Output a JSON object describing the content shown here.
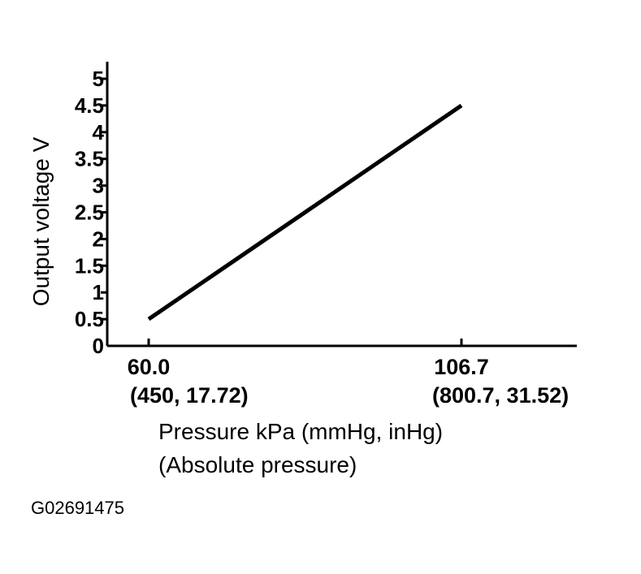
{
  "chart_data": {
    "type": "line",
    "ylabel": "Output voltage V",
    "xlabel_lines": [
      "Pressure kPa (mmHg, inHg)",
      "(Absolute pressure)"
    ],
    "y_ticks": [
      0,
      0.5,
      1,
      1.5,
      2,
      2.5,
      3,
      3.5,
      4,
      4.5,
      5
    ],
    "y_tick_labels": [
      "0",
      "0.5",
      "1",
      "1.5",
      "2",
      "2.5",
      "3",
      "3.5",
      "4",
      "4.5",
      "5"
    ],
    "ylim": [
      0,
      5.5
    ],
    "x_ticks": [
      60.0,
      106.7
    ],
    "x_tick_labels": [
      {
        "value": "60.0",
        "sub": "(450, 17.72)"
      },
      {
        "value": "106.7",
        "sub": "(800.7, 31.52)"
      }
    ],
    "xlim": [
      49.7,
      124.8
    ],
    "series": [
      {
        "x": [
          60.0,
          106.7
        ],
        "y": [
          0.5,
          4.5
        ]
      }
    ],
    "grid": false,
    "line_color": "#000000"
  },
  "figure_id": "G02691475"
}
